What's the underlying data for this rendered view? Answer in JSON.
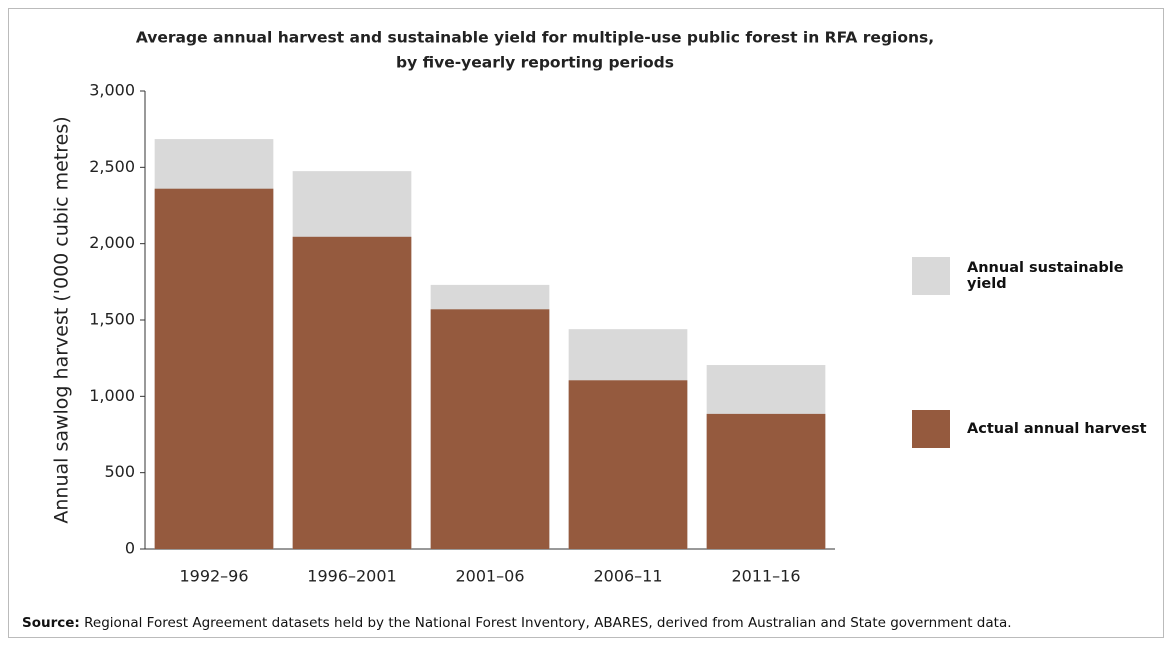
{
  "chart_data": {
    "type": "overlap_bar",
    "title": "Average annual harvest and sustainable yield for multiple-use public forest in RFA regions,",
    "subtitle": "by five-yearly reporting periods",
    "y_label": "Annual sawlog harvest ('000 cubic metres)",
    "categories": [
      "1992–96",
      "1996–2001",
      "2001–06",
      "2006–11",
      "2011–16"
    ],
    "series": [
      {
        "name": "Annual sustainable yield",
        "color": "#d9d9d9",
        "values": [
          2685,
          2475,
          1730,
          1440,
          1205
        ]
      },
      {
        "name": "Actual annual harvest",
        "color": "#955a3e",
        "values": [
          2360,
          2045,
          1570,
          1105,
          885
        ]
      }
    ],
    "ylim": [
      0,
      3000
    ],
    "yticks": [
      0,
      500,
      {
        "value": 1000,
        "label": "1,000"
      },
      {
        "value": 1500,
        "label": "1,500"
      },
      {
        "value": 2000,
        "label": "2,000"
      },
      {
        "value": 2500,
        "label": "2,500"
      },
      {
        "value": 3000,
        "label": "3,000"
      }
    ],
    "grid": false,
    "legend": "right",
    "source_label": "Source:",
    "source_text": "Regional Forest Agreement datasets held by the National Forest Inventory, ABARES, derived from Australian and State government data."
  }
}
